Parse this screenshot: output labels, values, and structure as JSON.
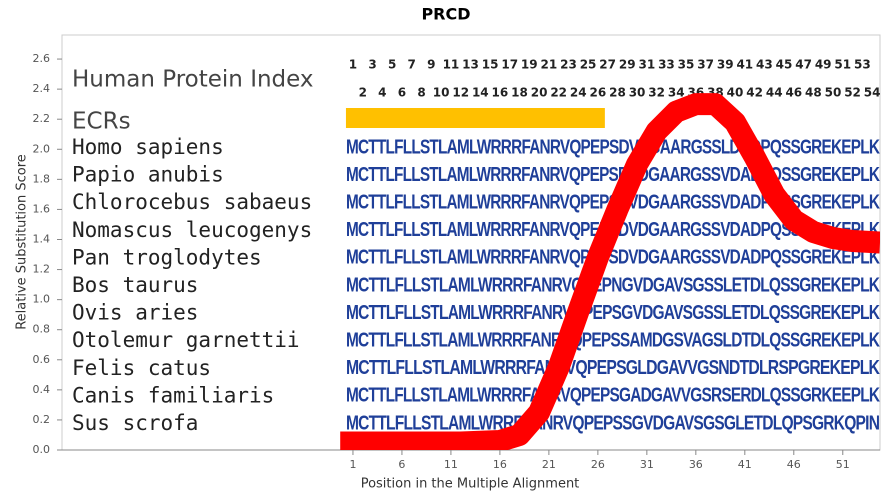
{
  "chart_data": {
    "type": "line",
    "title": "PRCD",
    "xlabel": "Position in the Multiple Alignment",
    "ylabel": "Relative Substitution Score",
    "xlim": [
      -28.7,
      54.8
    ],
    "ylim": [
      0,
      2.76
    ],
    "xticks": [
      1,
      6,
      11,
      16,
      21,
      26,
      31,
      36,
      41,
      46,
      51
    ],
    "yticks": [
      {
        "value": 0,
        "label": "0.0"
      },
      0.2,
      0.4,
      0.6,
      0.8,
      {
        "value": 1,
        "label": "1.0"
      },
      1.2,
      1.4,
      1.6,
      1.8,
      {
        "value": 2,
        "label": "2.0"
      },
      2.2,
      2.4,
      2.6
    ],
    "series": [
      {
        "color": "#ff0000",
        "x": [
          -0.3,
          4,
          8,
          12,
          16,
          18,
          20,
          22,
          24,
          26,
          28,
          30,
          32,
          34,
          36,
          38,
          40,
          42,
          44,
          46,
          48,
          50,
          52,
          54.8
        ],
        "values": [
          0.05,
          0.05,
          0.05,
          0.05,
          0.06,
          0.1,
          0.25,
          0.55,
          0.92,
          1.28,
          1.6,
          1.9,
          2.12,
          2.25,
          2.3,
          2.3,
          2.18,
          1.95,
          1.7,
          1.53,
          1.45,
          1.41,
          1.39,
          1.38
        ]
      }
    ],
    "index_title": "Human Protein Index",
    "index_numbers": [
      1,
      2,
      3,
      4,
      5,
      6,
      7,
      8,
      9,
      10,
      11,
      12,
      13,
      14,
      15,
      16,
      17,
      18,
      19,
      20,
      21,
      22,
      23,
      24,
      25,
      26,
      27,
      28,
      29,
      30,
      31,
      32,
      33,
      34,
      35,
      36,
      37,
      38,
      39,
      40,
      41,
      42,
      43,
      44,
      45,
      46,
      47,
      48,
      49,
      50,
      51,
      52,
      53,
      54
    ],
    "ecr_label": "ECRs",
    "ecrs": [
      {
        "start": 1,
        "end": 26,
        "color": "#ffc000"
      }
    ],
    "sequence_color": "#1f3f99",
    "alignment": [
      {
        "species": "Homo sapiens",
        "sequence": "MCTTLFLLSTLAMLWRRRFANRVQPEPSDVDGAARGSSLDADPQSSGREKEPLK"
      },
      {
        "species": "Papio anubis",
        "sequence": "MCTTLFLLSTLAMLWRRRFANRVQPEPSDVDGAARGSSVDADPQSSGREKEPLK"
      },
      {
        "species": "Chlorocebus sabaeus",
        "sequence": "MCTTLFLLSTLAMLWRRRFANRVQPEPSDVDGAARGSSVDADPQSSGREKEPLK"
      },
      {
        "species": "Nomascus leucogenys",
        "sequence": "MCTTLFLLSTLAMLWRRRFANRVQPEPSDVDGAARGSSVDADPQSSGREKEPLK"
      },
      {
        "species": "Pan troglodytes",
        "sequence": "MCTTLFLLSTLAMLWRRRFANRVQPEPSDVDGAARGSSVDADPQSSGREKEPLK"
      },
      {
        "species": "Bos taurus",
        "sequence": "MCTTLFLLSTLAMLWRRRFANRVQPEPNGVDGAVSGSSLETDLQSSGREKEPLK"
      },
      {
        "species": "Ovis aries",
        "sequence": "MCTTLFLLSTLAMLWRRRFANRVQPEPSGVDGAVSGSSLETDLQSSGREKEPLK"
      },
      {
        "species": "Otolemur garnettii",
        "sequence": "MCTTLFLLSTLAMLWRRRFANRVQPEPSSAMDGSVAGSLDTDLQSSGREKEPLK"
      },
      {
        "species": "Felis catus",
        "sequence": "MCTTLFLLSTLAMLWRRRFANRVQPEPSGLDGAVVGSNDTDLRSPGREKEPLK"
      },
      {
        "species": "Canis familiaris",
        "sequence": "MCTTLFLLSTLAMLWRRRFANRVQPEPSGADGAVVGSRSERDLQSSGRKEEPLK"
      },
      {
        "species": "Sus scrofa",
        "sequence": "MCTTLFLLSTLAMLWRRRFANRVQPEPSSGVDGAVSGSGLETDLQPSGRKQPIN"
      }
    ]
  }
}
